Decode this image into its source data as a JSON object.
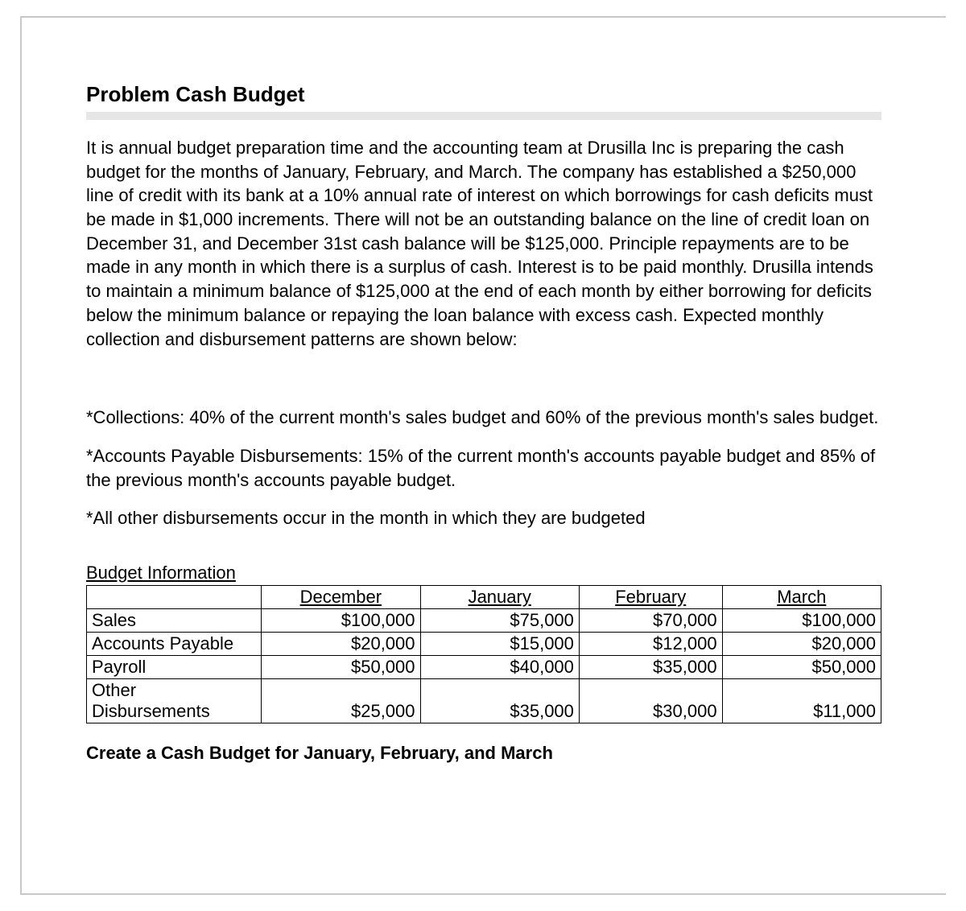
{
  "title": "Problem Cash Budget",
  "intro": "It is annual budget preparation time and the accounting team at Drusilla Inc is preparing the cash budget for the months of January, February, and March. The company has established a $250,000 line of credit with its bank at a 10% annual rate of interest on which borrowings for cash deficits must be made in $1,000 increments.  There will not be an outstanding balance on the line of credit loan on December 31, and December 31st cash balance will be $125,000.  Principle repayments are to be made in any month in which there is a surplus of cash.  Interest is to be paid monthly.  Drusilla intends to maintain a minimum balance of $125,000 at the end of each month by either borrowing for deficits below the minimum balance or repaying the loan balance with excess cash.  Expected monthly collection and disbursement patterns are shown below:",
  "note_collections": "*Collections:  40% of the current month's sales budget and 60% of the previous month's sales budget.",
  "note_ap": "*Accounts Payable Disbursements:  15% of the current month's accounts payable budget and 85% of the previous month's accounts payable budget.",
  "note_other": "*All other disbursements occur in the month in which they are budgeted",
  "budget_label": "Budget Information",
  "table": {
    "columns": [
      "",
      "December",
      "January",
      "February",
      "March"
    ],
    "col_widths_pct": [
      22,
      20,
      20,
      18,
      20
    ],
    "rows": [
      {
        "label": "Sales",
        "values": [
          "$100,000",
          "$75,000",
          "$70,000",
          "$100,000"
        ]
      },
      {
        "label": "Accounts Payable",
        "values": [
          "$20,000",
          "$15,000",
          "$12,000",
          "$20,000"
        ]
      },
      {
        "label": "Payroll",
        "values": [
          "$50,000",
          "$40,000",
          "$35,000",
          "$50,000"
        ]
      },
      {
        "label": "Other Disbursements",
        "values": [
          "$25,000",
          "$35,000",
          "$30,000",
          "$11,000"
        ]
      }
    ]
  },
  "instruction": "Create a Cash Budget for January, February, and March",
  "colors": {
    "rule": "#e6e6e6",
    "border": "#c8c8c8",
    "text": "#000000",
    "table_border": "#000000"
  }
}
